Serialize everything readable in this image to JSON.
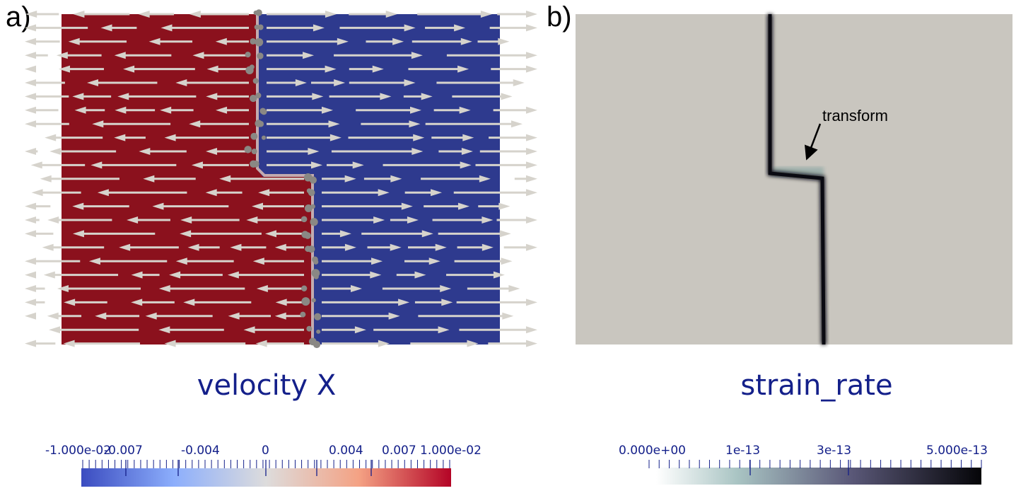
{
  "panel_a": {
    "label": "a)",
    "title": "velocity X",
    "colorbar": {
      "range": [
        -0.01,
        0.01
      ],
      "tick_labels": [
        "-1.000e-02",
        "-0.007",
        "-0.004",
        "0",
        "0.004",
        "0.007",
        "1.000e-02"
      ],
      "colormap": "cool-to-warm",
      "colors": [
        "#3b4cc0",
        "#dddcdc",
        "#b40426"
      ]
    },
    "field_colors": {
      "negative": "#8b111d",
      "positive": "#2e3a8e",
      "arrows": "#d6d3cc"
    }
  },
  "panel_b": {
    "label": "b)",
    "title": "strain_rate",
    "annotation": "transform",
    "colorbar": {
      "range": [
        0,
        5e-13
      ],
      "tick_labels": [
        "0.000e+00",
        "1e-13",
        "3e-13",
        "5.000e-13"
      ],
      "colors": [
        "#ffffff",
        "#a9c4c3",
        "#5a5878",
        "#000000"
      ]
    },
    "field_colors": {
      "background": "#c9c6bf",
      "high": "#0a0a12"
    }
  }
}
